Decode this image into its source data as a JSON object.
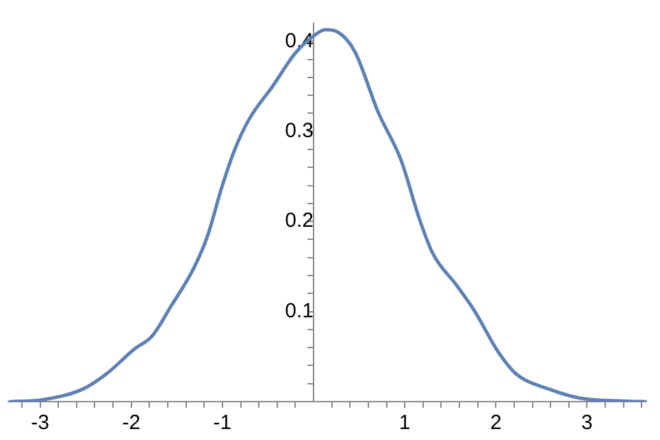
{
  "chart_data": {
    "type": "line",
    "x": [
      -3.33,
      -2.98,
      -2.53,
      -2.27,
      -1.97,
      -1.77,
      -1.57,
      -1.31,
      -1.16,
      -1.01,
      -0.86,
      -0.71,
      -0.45,
      -0.2,
      0,
      0.13,
      0.25,
      0.45,
      0.71,
      0.96,
      1.16,
      1.31,
      1.57,
      1.77,
      2.02,
      2.22,
      2.58,
      2.98,
      3.64
    ],
    "series": [
      {
        "color": "#5e81b5",
        "values": [
          0,
          0.002,
          0.014,
          0.031,
          0.058,
          0.073,
          0.105,
          0.149,
          0.185,
          0.237,
          0.281,
          0.313,
          0.35,
          0.387,
          0.406,
          0.413,
          0.411,
          0.389,
          0.321,
          0.268,
          0.203,
          0.164,
          0.129,
          0.1,
          0.056,
          0.031,
          0.014,
          0.003,
          0
        ]
      }
    ],
    "xlim": [
      -3.35,
      3.65
    ],
    "ylim": [
      0,
      0.42
    ],
    "xticks": [
      -3,
      -2,
      -1,
      1,
      2,
      3,
      {
        "value": -3.2,
        "label": null
      },
      {
        "value": -2.8,
        "label": null
      },
      {
        "value": -2.6,
        "label": null
      },
      {
        "value": -2.4,
        "label": null
      },
      {
        "value": -2.2,
        "label": null
      },
      {
        "value": -1.8,
        "label": null
      },
      {
        "value": -1.6,
        "label": null
      },
      {
        "value": -1.4,
        "label": null
      },
      {
        "value": -1.2,
        "label": null
      },
      {
        "value": -0.8,
        "label": null
      },
      {
        "value": -0.6,
        "label": null
      },
      {
        "value": -0.4,
        "label": null
      },
      {
        "value": -0.2,
        "label": null
      },
      {
        "value": 0.2,
        "label": null
      },
      {
        "value": 0.4,
        "label": null
      },
      {
        "value": 0.6,
        "label": null
      },
      {
        "value": 0.8,
        "label": null
      },
      {
        "value": 1.2,
        "label": null
      },
      {
        "value": 1.4,
        "label": null
      },
      {
        "value": 1.6,
        "label": null
      },
      {
        "value": 1.8,
        "label": null
      },
      {
        "value": 2.2,
        "label": null
      },
      {
        "value": 2.4,
        "label": null
      },
      {
        "value": 2.6,
        "label": null
      },
      {
        "value": 2.8,
        "label": null
      },
      {
        "value": 3.2,
        "label": null
      },
      {
        "value": 3.4,
        "label": null
      },
      {
        "value": 3.6,
        "label": null
      }
    ],
    "yticks": [
      0.1,
      0.2,
      0.3,
      0.4,
      {
        "value": 0.02,
        "label": null
      },
      {
        "value": 0.04,
        "label": null
      },
      {
        "value": 0.06,
        "label": null
      },
      {
        "value": 0.08,
        "label": null
      },
      {
        "value": 0.12,
        "label": null
      },
      {
        "value": 0.14,
        "label": null
      },
      {
        "value": 0.16,
        "label": null
      },
      {
        "value": 0.18,
        "label": null
      },
      {
        "value": 0.22,
        "label": null
      },
      {
        "value": 0.24,
        "label": null
      },
      {
        "value": 0.26,
        "label": null
      },
      {
        "value": 0.28,
        "label": null
      },
      {
        "value": 0.32,
        "label": null
      },
      {
        "value": 0.34,
        "label": null
      },
      {
        "value": 0.36,
        "label": null
      },
      {
        "value": 0.38,
        "label": null
      }
    ],
    "grid": false,
    "legend": false,
    "marker": "none",
    "line_style": "solid"
  }
}
